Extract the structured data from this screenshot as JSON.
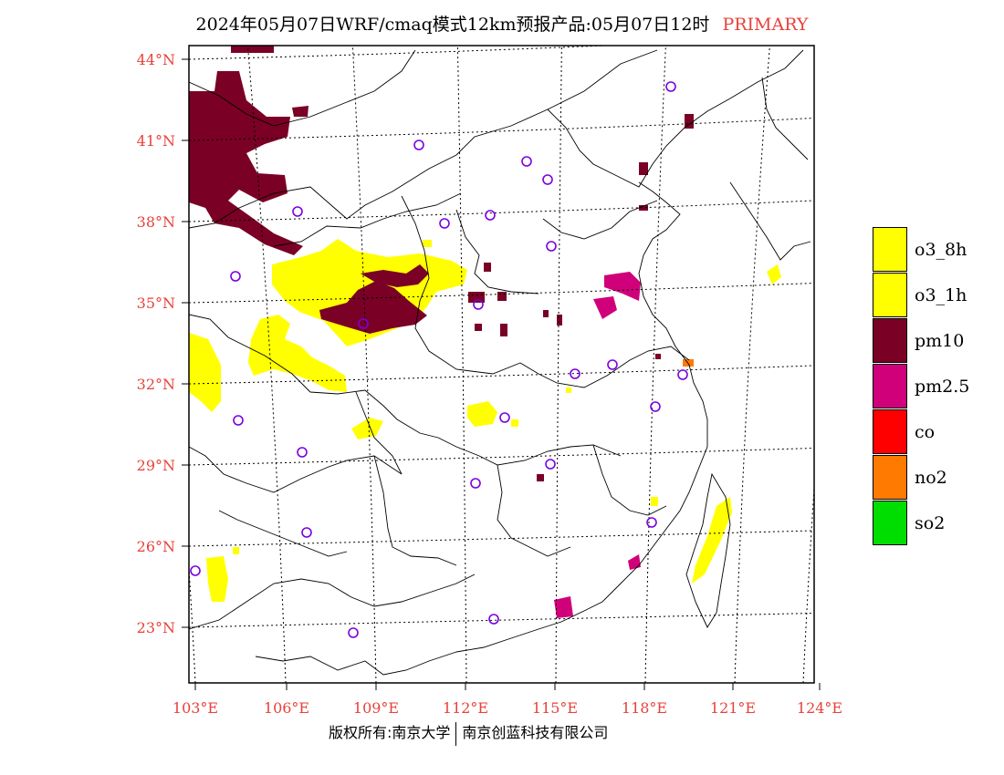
{
  "title": "2024年05月07日WRF/cmaq模式12km预报产品:05月07日12时",
  "primary_label": "PRIMARY",
  "footer": {
    "left": "版权所有:南京大学",
    "right": "南京创蓝科技有限公司"
  },
  "colors": {
    "label_red": "#e8413a",
    "o3": "#ffff00",
    "pm10": "#7a0026",
    "pm25": "#d0007a",
    "co": "#ff0000",
    "no2": "#ff7a00",
    "so2": "#00dd00",
    "station": "#7a00e0"
  },
  "map": {
    "lat_labels": [
      "44°N",
      "41°N",
      "38°N",
      "35°N",
      "32°N",
      "29°N",
      "26°N",
      "23°N"
    ],
    "lon_labels": [
      "103°E",
      "106°E",
      "109°E",
      "112°E",
      "115°E",
      "118°E",
      "121°E",
      "124°E"
    ]
  },
  "legend": [
    {
      "label": "o3_8h",
      "color": "#ffff00"
    },
    {
      "label": "o3_1h",
      "color": "#ffff00"
    },
    {
      "label": "pm10",
      "color": "#7a0026"
    },
    {
      "label": "pm2.5",
      "color": "#d0007a"
    },
    {
      "label": "co",
      "color": "#ff0000"
    },
    {
      "label": "no2",
      "color": "#ff7a00"
    },
    {
      "label": "so2",
      "color": "#00dd00"
    }
  ]
}
